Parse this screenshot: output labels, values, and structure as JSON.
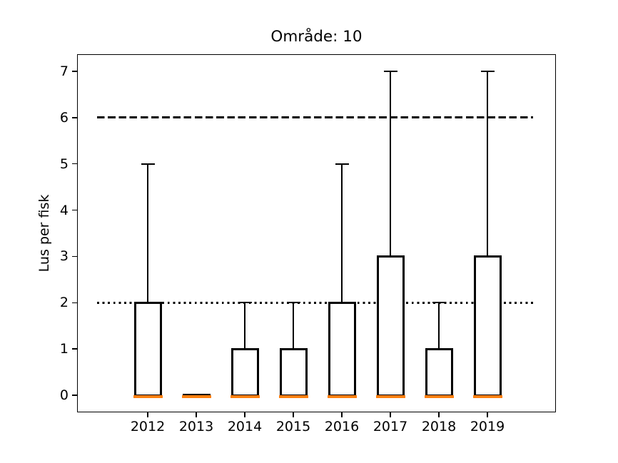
{
  "chart_data": {
    "type": "boxplot",
    "title": "Område: 10",
    "xlabel": "",
    "ylabel": "Lus per fisk",
    "categories": [
      "2012",
      "2013",
      "2014",
      "2015",
      "2016",
      "2017",
      "2018",
      "2019"
    ],
    "boxes": [
      {
        "category": "2012",
        "whislo": 0,
        "q1": 0,
        "med": 0,
        "q3": 2,
        "whishi": 5
      },
      {
        "category": "2013",
        "whislo": 0,
        "q1": 0,
        "med": 0,
        "q3": 0,
        "whishi": 0
      },
      {
        "category": "2014",
        "whislo": 0,
        "q1": 0,
        "med": 0,
        "q3": 1,
        "whishi": 2
      },
      {
        "category": "2015",
        "whislo": 0,
        "q1": 0,
        "med": 0,
        "q3": 1,
        "whishi": 2
      },
      {
        "category": "2016",
        "whislo": 0,
        "q1": 0,
        "med": 0,
        "q3": 2,
        "whishi": 5
      },
      {
        "category": "2017",
        "whislo": 0,
        "q1": 0,
        "med": 0,
        "q3": 3,
        "whishi": 7
      },
      {
        "category": "2018",
        "whislo": 0,
        "q1": 0,
        "med": 0,
        "q3": 1,
        "whishi": 2
      },
      {
        "category": "2019",
        "whislo": 0,
        "q1": 0,
        "med": 0,
        "q3": 3,
        "whishi": 7
      }
    ],
    "reference_lines": [
      {
        "y": 6,
        "style": "dashed",
        "color": "#000000"
      },
      {
        "y": 2,
        "style": "dotted",
        "color": "#000000"
      }
    ],
    "yticks": [
      "0",
      "1",
      "2",
      "3",
      "4",
      "5",
      "6",
      "7"
    ],
    "ylim": [
      -0.37,
      7.37
    ],
    "grid": false,
    "legend": null,
    "box_color": "#000000",
    "median_color": "#ff7f0e",
    "background_color": "#ffffff"
  }
}
